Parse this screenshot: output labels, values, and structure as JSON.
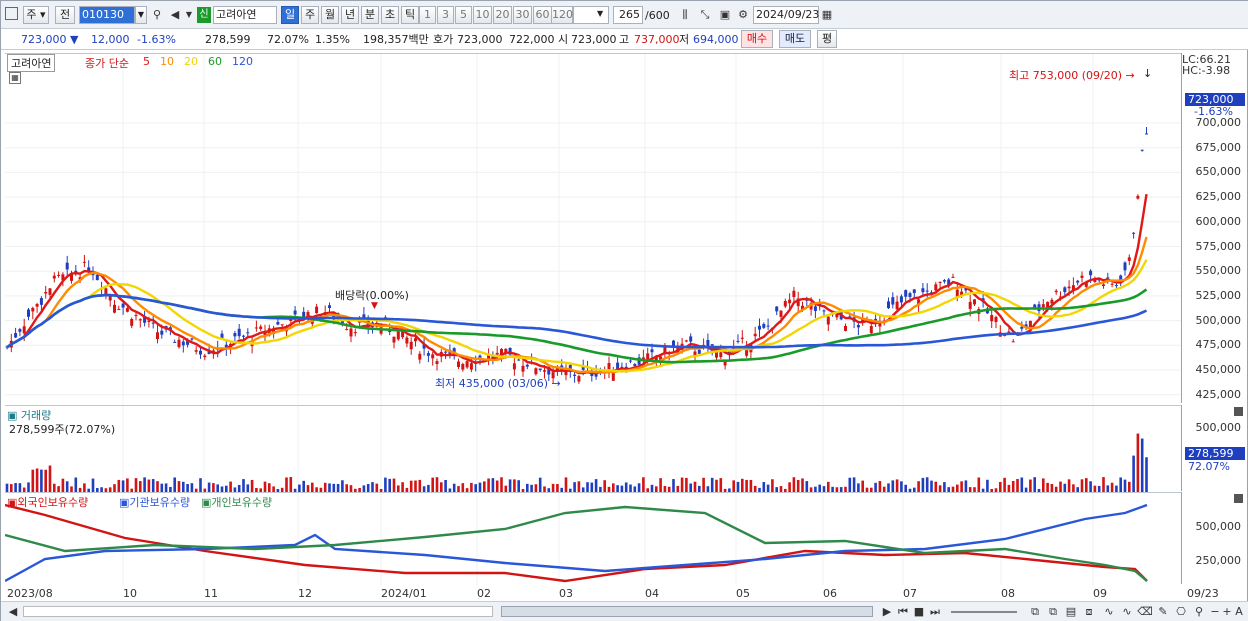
{
  "toolbar": {
    "market": "주",
    "prev": "전",
    "code": "010130",
    "name_badge": "신",
    "name": "고려아연",
    "periods": [
      "일",
      "주",
      "월",
      "년",
      "분",
      "초",
      "틱"
    ],
    "intervals": [
      "1",
      "3",
      "5",
      "10",
      "20",
      "30",
      "60",
      "120"
    ],
    "count_value": "265",
    "count_max": "/600",
    "date": "2024/09/23"
  },
  "quote": {
    "price": "723,000",
    "change": "12,000",
    "change_pct": "-1.63%",
    "volume": "278,599",
    "vol_ratio": "72.07%",
    "turnover_pct": "1.35%",
    "amount": "198,357백만",
    "ask_label": "호가",
    "ask": "723,000",
    "bid": "722,000",
    "open_label": "시",
    "open": "723,000",
    "high_label": "고",
    "high": "737,000",
    "low_label": "저",
    "low": "694,000",
    "buy": "매수",
    "sell": "매도",
    "flat": "평"
  },
  "price_pane": {
    "stock_label": "고려아연",
    "ma_label": "종가 단순",
    "ma_periods": [
      "5",
      "10",
      "20",
      "60",
      "120"
    ],
    "ma_colors": [
      "#e01818",
      "#ff8c00",
      "#f2d600",
      "#1a9a2a",
      "#2a56d8"
    ],
    "lc": "LC:66.21",
    "hc": "HC:-3.98",
    "high_note": "최고 753,000 (09/20)",
    "low_note": "최저 435,000 (03/06)",
    "dividend_note": "배당락(0.00%)",
    "current_price_tag": "723,000",
    "current_change_tag": "-1.63%",
    "yticks": [
      "700,000",
      "675,000",
      "650,000",
      "625,000",
      "600,000",
      "575,000",
      "550,000",
      "525,000",
      "500,000",
      "475,000",
      "450,000",
      "425,000"
    ]
  },
  "volume_pane": {
    "title": "거래량",
    "subtitle": "278,599주(72.07%)",
    "ytick": "500,000",
    "tag_value": "278,599",
    "tag_pct": "72.07%"
  },
  "holding_pane": {
    "legend": [
      "외국인보유수량",
      "기관보유수량",
      "개인보유수량"
    ],
    "colors": [
      "#d21414",
      "#2a56d8",
      "#2f8a4a"
    ],
    "yticks": [
      "500,000",
      "250,000"
    ]
  },
  "xaxis": [
    "2023/08",
    "10",
    "11",
    "12",
    "2024/01",
    "02",
    "03",
    "04",
    "05",
    "06",
    "07",
    "08",
    "09",
    "09/23"
  ]
}
